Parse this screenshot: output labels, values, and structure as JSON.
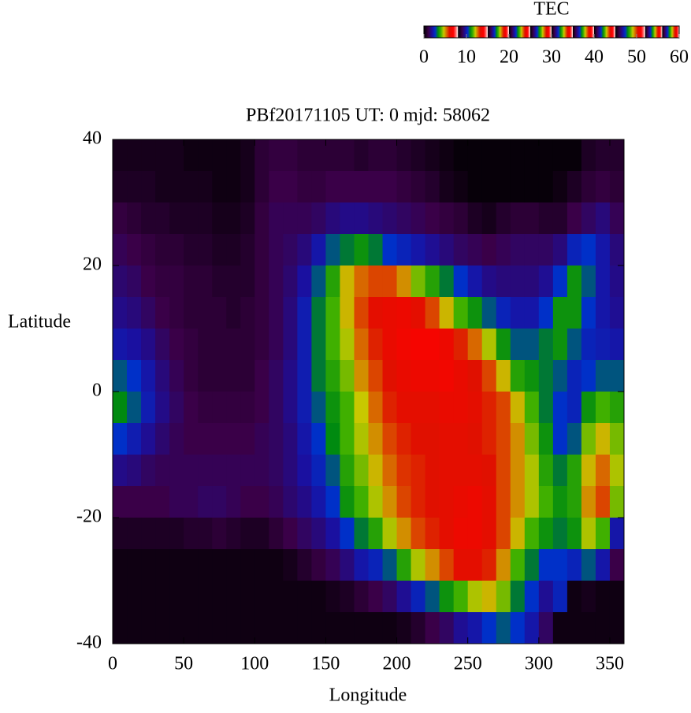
{
  "chart_data": {
    "type": "heatmap",
    "title": "PBf20171105  UT: 0  mjd: 58062",
    "x_label": "Longitude",
    "y_label": "Latitude",
    "colorbar_label": "TEC",
    "x": [
      5,
      15,
      25,
      35,
      45,
      55,
      65,
      75,
      85,
      95,
      105,
      115,
      125,
      135,
      145,
      155,
      165,
      175,
      185,
      195,
      205,
      215,
      225,
      235,
      245,
      255,
      265,
      275,
      285,
      295,
      305,
      315,
      325,
      335,
      345,
      355
    ],
    "y": [
      37.5,
      32.5,
      27.5,
      22.5,
      17.5,
      12.5,
      7.5,
      2.5,
      -2.5,
      -7.5,
      -12.5,
      -17.5,
      -22.5,
      -27.5,
      -32.5,
      -37.5
    ],
    "values": [
      [
        3,
        3,
        3,
        3,
        3,
        2,
        2,
        2,
        2,
        3,
        6,
        7,
        7,
        6,
        6,
        6,
        6,
        5,
        6,
        6,
        5,
        4,
        3,
        2,
        1,
        1,
        1,
        1,
        1,
        1,
        1,
        1,
        1,
        4,
        5,
        5
      ],
      [
        4,
        4,
        4,
        3,
        3,
        3,
        3,
        2,
        2,
        3,
        6,
        8,
        8,
        7,
        7,
        8,
        8,
        8,
        8,
        8,
        7,
        6,
        5,
        3,
        2,
        1,
        1,
        1,
        1,
        1,
        1,
        2,
        4,
        6,
        7,
        6
      ],
      [
        7,
        6,
        5,
        5,
        4,
        4,
        4,
        3,
        3,
        4,
        7,
        9,
        9,
        9,
        10,
        12,
        13,
        13,
        12,
        11,
        10,
        9,
        8,
        7,
        6,
        4,
        3,
        5,
        6,
        6,
        5,
        5,
        8,
        10,
        12,
        9
      ],
      [
        9,
        8,
        7,
        6,
        6,
        5,
        5,
        4,
        4,
        5,
        7,
        9,
        10,
        12,
        16,
        22,
        24,
        26,
        24,
        20,
        18,
        16,
        14,
        12,
        10,
        9,
        8,
        9,
        10,
        10,
        10,
        12,
        18,
        20,
        16,
        12
      ],
      [
        11,
        10,
        8,
        7,
        7,
        6,
        6,
        5,
        5,
        5,
        7,
        9,
        11,
        15,
        22,
        28,
        36,
        40,
        42,
        42,
        38,
        32,
        28,
        24,
        20,
        16,
        13,
        12,
        12,
        12,
        14,
        20,
        26,
        22,
        16,
        13
      ],
      [
        13,
        12,
        10,
        8,
        7,
        6,
        6,
        6,
        5,
        6,
        7,
        9,
        12,
        17,
        24,
        30,
        36,
        42,
        46,
        47,
        48,
        46,
        42,
        36,
        30,
        26,
        22,
        18,
        16,
        16,
        20,
        26,
        26,
        20,
        16,
        14
      ],
      [
        16,
        15,
        13,
        10,
        8,
        7,
        6,
        6,
        6,
        6,
        7,
        9,
        12,
        17,
        24,
        30,
        34,
        40,
        44,
        47,
        49,
        50,
        50,
        48,
        44,
        40,
        34,
        26,
        22,
        22,
        24,
        26,
        22,
        18,
        17,
        16
      ],
      [
        22,
        20,
        16,
        12,
        9,
        7,
        6,
        6,
        6,
        6,
        8,
        10,
        13,
        17,
        24,
        28,
        32,
        38,
        42,
        45,
        47,
        48,
        48,
        49,
        47,
        45,
        42,
        36,
        28,
        26,
        24,
        22,
        18,
        20,
        22,
        22
      ],
      [
        25,
        22,
        17,
        13,
        10,
        8,
        7,
        7,
        7,
        7,
        8,
        10,
        13,
        17,
        22,
        26,
        30,
        35,
        40,
        44,
        46,
        46,
        46,
        47,
        47,
        46,
        44,
        42,
        36,
        30,
        24,
        20,
        18,
        26,
        30,
        28
      ],
      [
        20,
        17,
        14,
        11,
        9,
        8,
        8,
        8,
        8,
        8,
        9,
        10,
        12,
        16,
        20,
        25,
        30,
        34,
        38,
        42,
        44,
        45,
        45,
        46,
        46,
        45,
        44,
        42,
        38,
        32,
        26,
        20,
        22,
        32,
        36,
        32
      ],
      [
        13,
        12,
        10,
        9,
        9,
        9,
        9,
        9,
        9,
        9,
        9,
        10,
        12,
        15,
        18,
        22,
        28,
        32,
        36,
        40,
        43,
        44,
        45,
        46,
        46,
        46,
        45,
        42,
        38,
        34,
        28,
        24,
        28,
        36,
        40,
        34
      ],
      [
        8,
        8,
        8,
        8,
        9,
        9,
        10,
        10,
        9,
        8,
        8,
        9,
        11,
        13,
        16,
        20,
        26,
        30,
        34,
        38,
        42,
        44,
        45,
        46,
        47,
        48,
        46,
        42,
        38,
        34,
        30,
        26,
        28,
        38,
        42,
        32
      ],
      [
        4,
        4,
        4,
        4,
        4,
        5,
        5,
        6,
        5,
        4,
        4,
        6,
        8,
        10,
        12,
        15,
        20,
        24,
        28,
        34,
        38,
        42,
        44,
        46,
        48,
        48,
        46,
        42,
        36,
        30,
        26,
        24,
        26,
        34,
        30,
        16
      ],
      [
        2,
        2,
        2,
        2,
        2,
        2,
        2,
        2,
        2,
        2,
        2,
        2,
        3,
        5,
        7,
        9,
        12,
        16,
        18,
        22,
        28,
        34,
        38,
        42,
        46,
        46,
        44,
        38,
        30,
        24,
        20,
        20,
        18,
        22,
        16,
        8
      ],
      [
        2,
        2,
        2,
        2,
        2,
        2,
        2,
        2,
        2,
        2,
        2,
        2,
        2,
        2,
        2,
        3,
        4,
        6,
        8,
        10,
        14,
        18,
        22,
        26,
        30,
        34,
        36,
        32,
        24,
        20,
        14,
        18,
        2,
        3,
        2,
        2
      ],
      [
        2,
        2,
        2,
        2,
        2,
        2,
        2,
        2,
        2,
        2,
        2,
        2,
        2,
        2,
        2,
        2,
        2,
        2,
        2,
        2,
        3,
        5,
        8,
        10,
        14,
        16,
        20,
        22,
        20,
        16,
        10,
        2,
        2,
        2,
        2,
        2
      ]
    ],
    "colorscale": [
      [
        0,
        "#000000"
      ],
      [
        8,
        "#3a0048"
      ],
      [
        15,
        "#1a10a0"
      ],
      [
        20,
        "#0030c8"
      ],
      [
        25,
        "#008a10"
      ],
      [
        30,
        "#40b000"
      ],
      [
        35,
        "#c8c800"
      ],
      [
        40,
        "#d86800"
      ],
      [
        45,
        "#e01000"
      ],
      [
        52,
        "#ff0000"
      ],
      [
        56,
        "#ff6060"
      ],
      [
        60,
        "#ffffff"
      ]
    ],
    "clim": [
      0,
      60
    ],
    "cticks": [
      0,
      10,
      20,
      30,
      40,
      50,
      60
    ],
    "xlim": [
      0,
      360
    ],
    "xticks": [
      0,
      50,
      100,
      150,
      200,
      250,
      300,
      350
    ],
    "ylim": [
      -40,
      40
    ],
    "yticks": [
      -40,
      -20,
      0,
      20,
      40
    ]
  }
}
